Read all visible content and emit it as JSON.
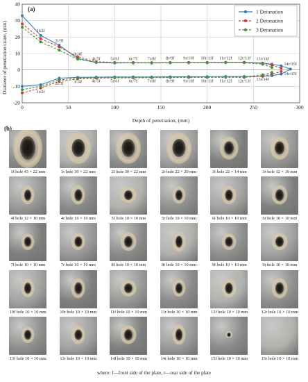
{
  "chart_data": {
    "type": "line",
    "panel_label": "(a)",
    "xlabel": "Depth of penetration, (mm)",
    "ylabel": "Diameter of penetration crater, (mm)",
    "xlim": [
      0,
      300
    ],
    "ylim": [
      -20,
      40
    ],
    "xticks": [
      0,
      50,
      100,
      150,
      200,
      250,
      300
    ],
    "yticks": [
      -20,
      -10,
      0,
      10,
      20,
      30,
      40
    ],
    "grid": true,
    "legend_position": "top-right",
    "series": [
      {
        "name": "1 Detonation",
        "color": "#2f7ec9",
        "style": "solid",
        "marker": "circle",
        "upper": {
          "x": [
            0,
            20,
            40,
            60,
            80,
            100,
            120,
            140,
            160,
            180,
            200,
            220,
            240,
            260,
            270,
            280,
            290
          ],
          "y": [
            33,
            21,
            15,
            7,
            4.5,
            4.2,
            4.3,
            4.3,
            4.4,
            4.5,
            4.5,
            4.6,
            4.6,
            4.2,
            3.5,
            2.5,
            0.5
          ]
        },
        "lower": {
          "x": [
            0,
            20,
            40,
            60,
            80,
            100,
            120,
            140,
            160,
            180,
            200,
            220,
            240,
            260,
            270,
            280,
            290
          ],
          "y": [
            -10,
            -9,
            -5,
            -4.5,
            -4.4,
            -4.3,
            -4.3,
            -4.3,
            -4.2,
            -4.1,
            -4.1,
            -4.0,
            -4.0,
            -3.9,
            -3.5,
            -2.5,
            0.5
          ]
        }
      },
      {
        "name": "2 Detonation",
        "color": "#d93a2e",
        "style": "dashed",
        "marker": "circle",
        "upper": {
          "x": [
            0,
            20,
            40,
            60,
            80,
            100,
            120,
            140,
            160,
            180,
            200,
            220,
            240,
            260,
            270,
            280
          ],
          "y": [
            28,
            19,
            14,
            8,
            5,
            4.5,
            4.5,
            4.4,
            4.5,
            4.5,
            4.5,
            4.6,
            4.6,
            4.0,
            3.0,
            1.0
          ]
        },
        "lower": {
          "x": [
            0,
            20,
            40,
            60,
            80,
            100,
            120,
            140,
            160,
            180,
            200,
            220,
            240,
            260,
            270,
            280
          ],
          "y": [
            -14,
            -11,
            -7,
            -5.5,
            -5,
            -4.8,
            -4.8,
            -4.7,
            -4.6,
            -4.6,
            -4.5,
            -4.5,
            -4.5,
            -3.8,
            -2.5,
            -1.0
          ]
        }
      },
      {
        "name": "3 Detonation",
        "color": "#3a9a3a",
        "style": "dashed",
        "marker": "circle",
        "upper": {
          "x": [
            0,
            20,
            40,
            60,
            80,
            100,
            120,
            140,
            160,
            180,
            200,
            220,
            240,
            260,
            270
          ],
          "y": [
            26,
            17,
            12,
            6.5,
            4.5,
            4.3,
            4.3,
            4.2,
            4.3,
            4.3,
            4.3,
            4.4,
            4.4,
            3.5,
            1.5
          ]
        },
        "lower": {
          "x": [
            0,
            20,
            40,
            60,
            80,
            100,
            120,
            140,
            160,
            180,
            200,
            220,
            240,
            260,
            270
          ],
          "y": [
            -12,
            -10,
            -6,
            -5,
            -4.7,
            -4.6,
            -4.6,
            -4.5,
            -4.5,
            -4.4,
            -4.4,
            -4.3,
            -4.3,
            -3.0,
            -1.5
          ]
        }
      }
    ],
    "annotations_upper": [
      {
        "text": "1f/2f",
        "x": 20,
        "y": 23
      },
      {
        "text": "2r/3f",
        "x": 40,
        "y": 17
      },
      {
        "text": "3r/4f",
        "x": 60,
        "y": 9
      },
      {
        "text": "4r/5f",
        "x": 80,
        "y": 6
      },
      {
        "text": "5r/6f",
        "x": 100,
        "y": 6
      },
      {
        "text": "6r/7f",
        "x": 120,
        "y": 6
      },
      {
        "text": "7r/8f",
        "x": 140,
        "y": 6
      },
      {
        "text": "8r/9f",
        "x": 160,
        "y": 6.5
      },
      {
        "text": "9r/10f",
        "x": 180,
        "y": 6.5
      },
      {
        "text": "10r/11f",
        "x": 200,
        "y": 6.5
      },
      {
        "text": "11r/12f",
        "x": 220,
        "y": 6.5
      },
      {
        "text": "12r/13f",
        "x": 240,
        "y": 6.5
      },
      {
        "text": "13r/14f",
        "x": 260,
        "y": 6
      },
      {
        "text": "14r/15f",
        "x": 290,
        "y": 2.8
      }
    ],
    "annotations_lower": [
      {
        "text": "1r/2f",
        "x": 20,
        "y": -14
      },
      {
        "text": "2r/3f",
        "x": 40,
        "y": -9
      },
      {
        "text": "3r/4f",
        "x": 60,
        "y": -8
      },
      {
        "text": "4r/5f",
        "x": 80,
        "y": -7.5
      },
      {
        "text": "5r/6f",
        "x": 100,
        "y": -7.5
      },
      {
        "text": "6r/7f",
        "x": 120,
        "y": -7.5
      },
      {
        "text": "7r/8f",
        "x": 140,
        "y": -7.5
      },
      {
        "text": "8r/9f",
        "x": 160,
        "y": -7.5
      },
      {
        "text": "9r/10f",
        "x": 180,
        "y": -7.5
      },
      {
        "text": "10r/11f",
        "x": 200,
        "y": -7.5
      },
      {
        "text": "11r/12f",
        "x": 220,
        "y": -7.5
      },
      {
        "text": "12r/13f",
        "x": 240,
        "y": -7.5
      },
      {
        "text": "13r/14f",
        "x": 260,
        "y": -6.5
      },
      {
        "text": "14r/15f",
        "x": 290,
        "y": -3
      }
    ]
  },
  "panel_b": {
    "label": "(b)",
    "captions": [
      "1f hole 43 × 22 mm",
      "1r hole 30 × 22 mm",
      "2f hole 30 × 22 mm",
      "2r hole 22 × 20 mm",
      "3f hole 22 × 14 mm",
      "3r hole 12 × 10 mm",
      "4f hole 12 × 10 mm",
      "4r hole 10 × 10 mm",
      "5f hole 10 × 10 mm",
      "5r hole 10 × 10 mm",
      "6f hole 10 × 10 mm",
      "6r hole 10 × 10 mm",
      "7f hole 10 × 10 mm",
      "7r hole 10 × 10 mm",
      "8f hole 10 × 10 mm",
      "8r hole 10 × 10 mm",
      "9f hole 10 × 10 mm",
      "9r hole 10 × 10 mm",
      "10f hole 10 × 10 mm",
      "10r hole 10 × 10 mm",
      "11f hole 10 × 10 mm",
      "11r hole 10 × 10 mm",
      "12f hole 10 × 10 mm",
      "12r hole 10 × 10 mm",
      "13f hole 10 × 10 mm",
      "13r hole 10 × 10 mm",
      "14f hole 10 × 10 mm",
      "14r hole 10 × 10 mm",
      "15f hole 10 × 10 mm",
      "15r hole 10 × 10 mm"
    ]
  },
  "footnote": "where: f—front side of the plate, r—rear side of the plate"
}
